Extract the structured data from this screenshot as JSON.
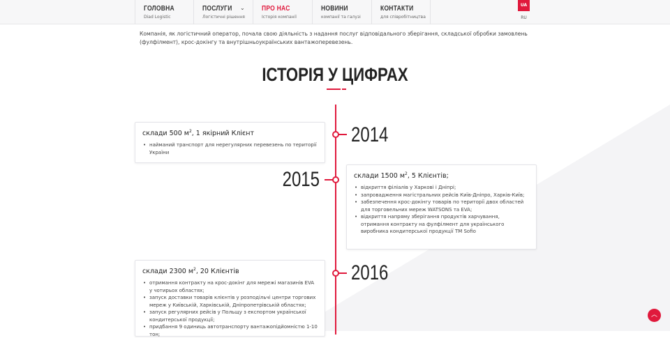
{
  "nav": {
    "items": [
      {
        "label": "ГОЛОВНА",
        "sub": "Diad Logistic"
      },
      {
        "label": "ПОСЛУГИ",
        "sub": "Логістичні рішення"
      },
      {
        "label": "ПРО НАС",
        "sub": "Історія компанії"
      },
      {
        "label": "НОВИНИ",
        "sub": "компанії та галузі"
      },
      {
        "label": "КОНТАКТИ",
        "sub": "для співробітництва"
      }
    ],
    "lang_active": "UA",
    "lang_other": "RU"
  },
  "intro": "Компанія, як логістичний оператор, почала свою діяльність з надання послуг відповідального зберігання, складської обробки замовлень (фулфілмент), крос-докінгу та внутрішньоукраїнських вантажоперевезень.",
  "title": "ІСТОРІЯ У ЦИФРАХ",
  "accent_color": "#e0193c",
  "timeline": [
    {
      "year": "2014",
      "heading_pre": "склади 500 м",
      "heading_sup": "2",
      "heading_post": ", 1 якірний Клієнт",
      "items": [
        "найманий транспорт для нерегулярних перевезень по території України"
      ]
    },
    {
      "year": "2015",
      "heading_pre": "склади 1500 м",
      "heading_sup": "2",
      "heading_post": ", 5 Клієнтів;",
      "items": [
        "відкриття філіалів у Харкові і Дніпрі;",
        "запровадження магістральних рейсів Київ-Дніпро, Харків-Київ;",
        "забезпечення крос-докінгу товарів по території двох областей для торговельних мереж WATSONS та EVA;",
        "відкриття напряму зберігання продуктів харчування, отримання контракту на фулфілмент для українського виробника кондитерської продукції ТМ Sofio"
      ]
    },
    {
      "year": "2016",
      "heading_pre": "склади 2300 м",
      "heading_sup": "2",
      "heading_post": ", 20 Клієнтів",
      "items": [
        "отримання контракту на крос-докінг для мережі магазинів EVA у чотирьох областях;",
        "запуск доставки товарів клієнтів у розподільчі центри торгових мереж у Київській, Харківській, Дніпропетрівській областях;",
        "запуск регулярних рейсів у Польщу з експортом української кондитерської продукції;",
        "придбання 9 одиниць автотранспорту вантажопідйомністю 1-10 тон;"
      ]
    }
  ],
  "scroll_top_icon": "arrow-up-icon"
}
